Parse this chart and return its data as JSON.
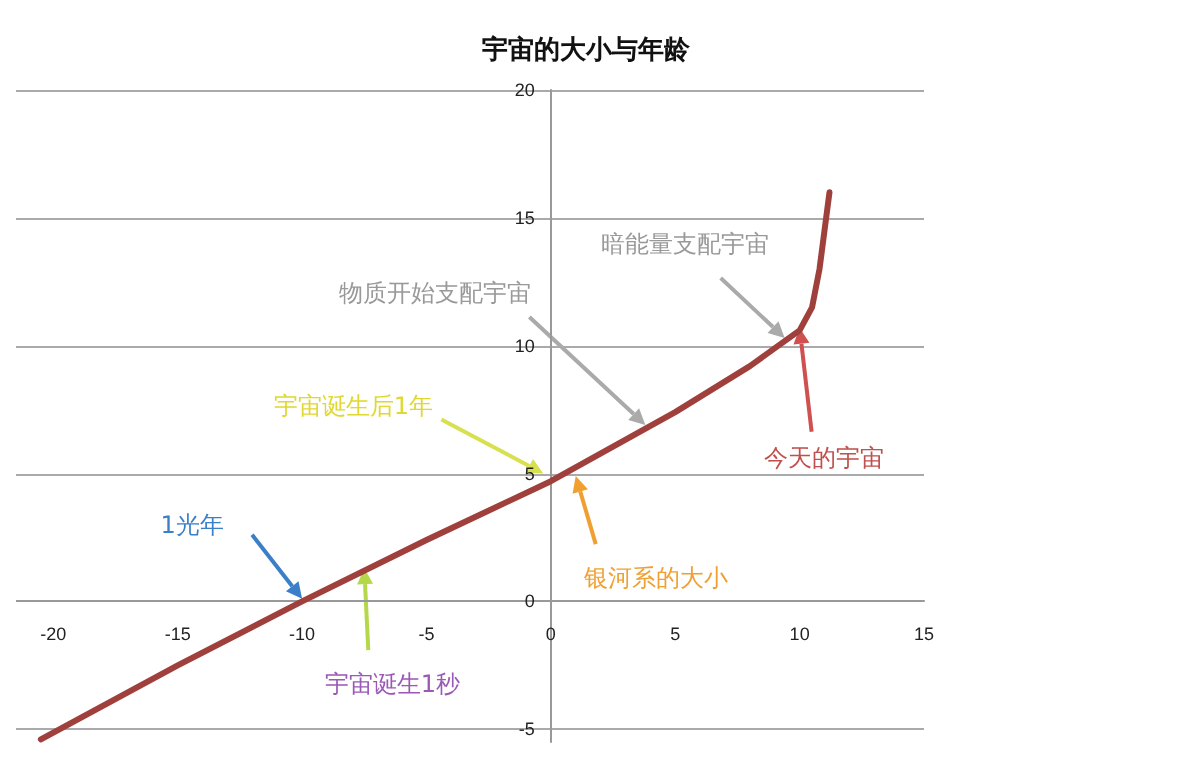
{
  "chart_data": {
    "type": "line",
    "title": "宇宙的大小与年龄",
    "x": [
      -20.5,
      -15,
      -10,
      -5,
      0,
      5,
      8,
      10,
      10.5,
      10.8,
      11,
      11.2
    ],
    "series": [
      {
        "color": "#a0403c",
        "values": [
          -5.4,
          -2.5,
          0,
          2.4,
          4.7,
          7.4,
          9.2,
          10.6,
          11.5,
          13,
          14.5,
          16
        ]
      }
    ],
    "xlim": [
      -21.5,
      15
    ],
    "xticks": [
      -20,
      -15,
      -10,
      -5,
      0,
      5,
      10,
      15
    ],
    "ylim": [
      -5.5,
      20
    ],
    "yticks": [
      -5,
      0,
      5,
      10,
      15,
      20
    ],
    "grid": "y",
    "marker": "none",
    "line_style": "solid",
    "annotations": [
      {
        "text": "1光年",
        "x": -10,
        "y": 0.1
      },
      {
        "text": "宇宙诞生1秒",
        "x": -7.5,
        "y": 1.3
      },
      {
        "text": "宇宙诞生后1年",
        "x": -0.3,
        "y": 5
      },
      {
        "text": "银河系的大小",
        "x": 1,
        "y": 4.9
      },
      {
        "text": "物质开始支配宇宙",
        "x": 3.8,
        "y": 6.9
      },
      {
        "text": "暗能量支配宇宙",
        "x": 9.4,
        "y": 10.3
      },
      {
        "text": "今天的宇宙",
        "x": 10,
        "y": 10.7
      }
    ]
  }
}
